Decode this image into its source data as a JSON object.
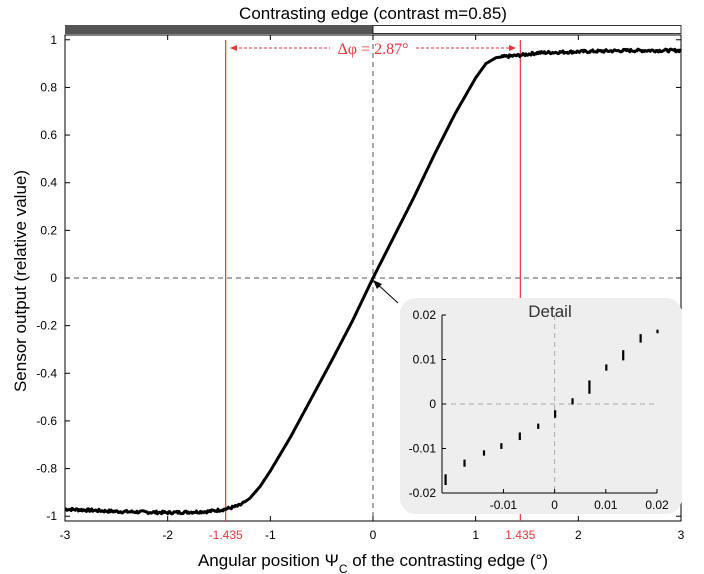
{
  "chart_data": [
    {
      "type": "line",
      "title": "Contrasting edge (contrast m=0.85)",
      "xlabel": "Angular position ΨC of the contrasting edge (°)",
      "ylabel": "Sensor output (relative value)",
      "xlim": [
        -3,
        3
      ],
      "ylim": [
        -1.02,
        1.02
      ],
      "xticks": [
        -3,
        -2,
        -1,
        0,
        1,
        2,
        3
      ],
      "yticks": [
        -1,
        -0.8,
        -0.6,
        -0.4,
        -0.2,
        0,
        0.2,
        0.4,
        0.6,
        0.8,
        1
      ],
      "x": [
        -3.0,
        -2.5,
        -2.0,
        -1.6,
        -1.435,
        -1.3,
        -1.2,
        -1.1,
        -1.0,
        -0.8,
        -0.6,
        -0.4,
        -0.2,
        0.0,
        0.2,
        0.4,
        0.6,
        0.8,
        1.0,
        1.1,
        1.2,
        1.3,
        1.435,
        1.6,
        2.0,
        2.5,
        3.0
      ],
      "y": [
        -0.97,
        -0.98,
        -0.985,
        -0.98,
        -0.97,
        -0.955,
        -0.925,
        -0.875,
        -0.81,
        -0.665,
        -0.505,
        -0.345,
        -0.18,
        0.0,
        0.17,
        0.34,
        0.52,
        0.69,
        0.84,
        0.9,
        0.925,
        0.93,
        0.935,
        0.945,
        0.95,
        0.955,
        0.955
      ],
      "reference_lines": {
        "red_verticals": [
          -1.435,
          1.435
        ],
        "red_tick_labels": [
          "-1.435",
          "1.435"
        ],
        "dashed_zero_lines": true
      },
      "annotation": "Δφ = 2.87°",
      "top_bar": {
        "dark_part": "negative half",
        "light_part": "positive half"
      }
    },
    {
      "type": "scatter",
      "title": "Detail",
      "xlim": [
        -0.022,
        0.02
      ],
      "ylim": [
        -0.02,
        0.02
      ],
      "xticks": [
        -0.01,
        0,
        0.01,
        0.02
      ],
      "xtick_labels": [
        "-0.01",
        "0",
        "0.01",
        "0.02"
      ],
      "yticks": [
        -0.02,
        -0.01,
        0,
        0.01,
        0.02
      ],
      "ytick_labels": [
        "-0.02",
        "-0.01",
        "0",
        "0.01",
        "0.02"
      ],
      "segments": [
        {
          "x": -0.0213,
          "y_low": -0.0182,
          "y_high": -0.0158
        },
        {
          "x": -0.0176,
          "y_low": -0.0141,
          "y_high": -0.0125
        },
        {
          "x": -0.0138,
          "y_low": -0.0116,
          "y_high": -0.0104
        },
        {
          "x": -0.0104,
          "y_low": -0.0101,
          "y_high": -0.0088
        },
        {
          "x": -0.0068,
          "y_low": -0.0081,
          "y_high": -0.0064
        },
        {
          "x": -0.0032,
          "y_low": -0.0056,
          "y_high": -0.0044
        },
        {
          "x": 0.0001,
          "y_low": -0.0031,
          "y_high": -0.0014
        },
        {
          "x": 0.0035,
          "y_low": -0.0001,
          "y_high": 0.0013
        },
        {
          "x": 0.0068,
          "y_low": 0.0023,
          "y_high": 0.0053
        },
        {
          "x": 0.0101,
          "y_low": 0.0075,
          "y_high": 0.0089
        },
        {
          "x": 0.0134,
          "y_low": 0.0098,
          "y_high": 0.0121
        },
        {
          "x": 0.0168,
          "y_low": 0.0138,
          "y_high": 0.0157
        },
        {
          "x": 0.0201,
          "y_low": 0.0159,
          "y_high": 0.0167
        }
      ]
    }
  ],
  "colors": {
    "curve": "#000000",
    "reference_red": "#e8353b",
    "bar_dark": "#555555",
    "inset_bg": "#eeeeee",
    "dashed": "#555555",
    "inset_dashed": "#aaaaaa"
  }
}
